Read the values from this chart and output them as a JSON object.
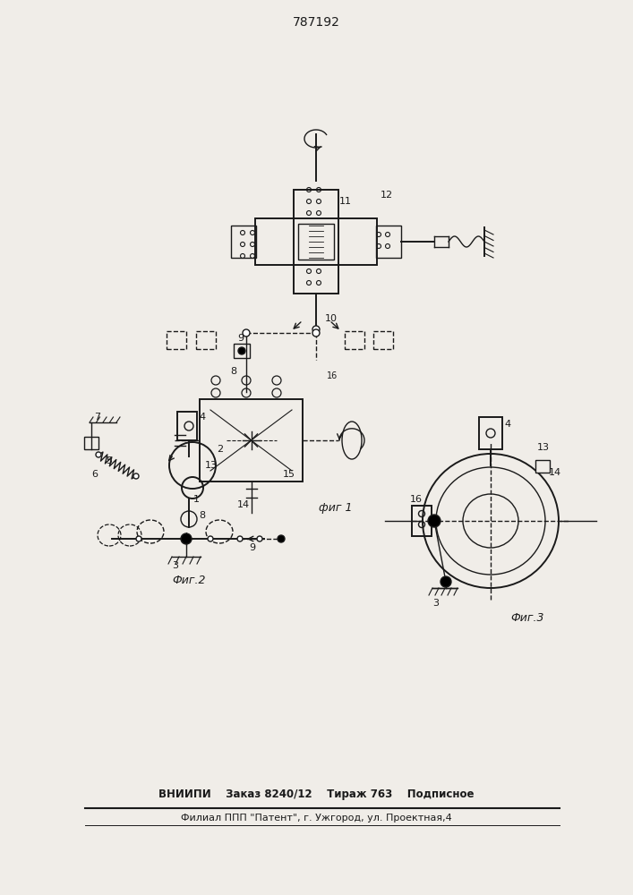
{
  "title": "787192",
  "fig1_label": "фиг 1",
  "fig2_label": "Фиг.2",
  "fig3_label": "Фиг.3",
  "footer_line1": "ВНИИПИ    Заказ 8240/12    Тираж 763    Подписное",
  "footer_line2": "Филиал ППП \"Патент\", г. Ужгород, ул. Проектная,4",
  "bg_color": "#f0ede8",
  "line_color": "#1a1a1a"
}
